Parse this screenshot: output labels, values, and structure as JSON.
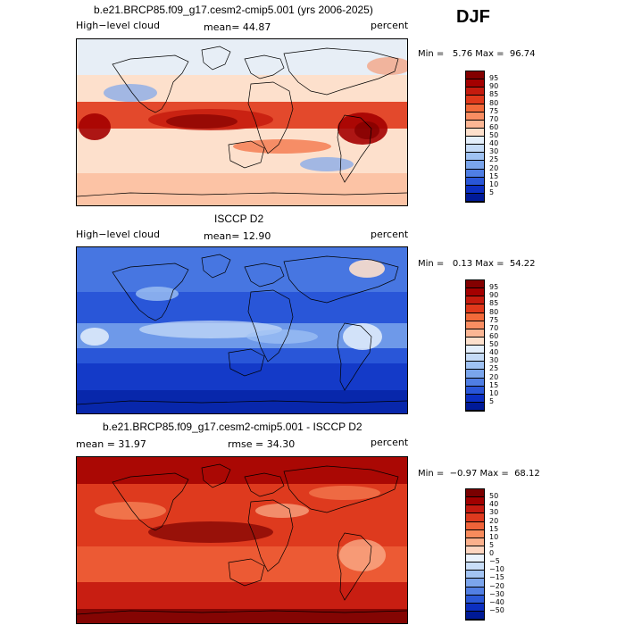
{
  "season": "DJF",
  "panels": [
    {
      "title": "b.e21.BRCP85.f09_g17.cesm2-cmip5.001 (yrs 2006-2025)",
      "left_label": "High−level cloud",
      "mean_text": "mean=  44.87",
      "units": "percent",
      "minmax": "Min =   5.76 Max =  96.74",
      "field": "model",
      "colorbar": {
        "labels": [
          "95",
          "90",
          "85",
          "80",
          "75",
          "70",
          "60",
          "50",
          "40",
          "30",
          "25",
          "20",
          "15",
          "10",
          "5"
        ],
        "colors": [
          "#830000",
          "#a40000",
          "#c51b0e",
          "#e0391b",
          "#f26a3a",
          "#f98e62",
          "#fbb694",
          "#fde0cc",
          "#e4effb",
          "#c5dbf7",
          "#9fc2f3",
          "#7aa5ec",
          "#4f7ee4",
          "#2956d8",
          "#0b2fc2",
          "#001a98"
        ]
      }
    },
    {
      "title": "ISCCP D2",
      "left_label": "High−level cloud",
      "mean_text": "mean=  12.90",
      "units": "percent",
      "minmax": "Min =   0.13 Max =  54.22",
      "field": "obs",
      "colorbar": {
        "labels": [
          "95",
          "90",
          "85",
          "80",
          "75",
          "70",
          "60",
          "50",
          "40",
          "30",
          "25",
          "20",
          "15",
          "10",
          "5"
        ],
        "colors": [
          "#830000",
          "#a40000",
          "#c51b0e",
          "#e0391b",
          "#f26a3a",
          "#f98e62",
          "#fbb694",
          "#fde0cc",
          "#e4effb",
          "#c5dbf7",
          "#9fc2f3",
          "#7aa5ec",
          "#4f7ee4",
          "#2956d8",
          "#0b2fc2",
          "#001a98"
        ]
      }
    },
    {
      "title": "b.e21.BRCP85.f09_g17.cesm2-cmip5.001 - ISCCP D2",
      "mean_text": "mean =   31.97",
      "rmse_text": "rmse =   34.30",
      "units": "percent",
      "minmax": "Min =  −0.97 Max =  68.12",
      "field": "diff",
      "colorbar": {
        "labels": [
          "50",
          "40",
          "30",
          "20",
          "15",
          "10",
          "5",
          "0",
          "−5",
          "−10",
          "−15",
          "−20",
          "−30",
          "−40",
          "−50"
        ],
        "colors": [
          "#7a0000",
          "#a10000",
          "#c41a10",
          "#de3a1e",
          "#ef6339",
          "#f88b5c",
          "#fbb08c",
          "#fdd5c0",
          "#eaf2fc",
          "#c9def8",
          "#a3c4f3",
          "#7ca5ec",
          "#527fe3",
          "#2b58d6",
          "#0c2fc0",
          "#001a96"
        ]
      }
    }
  ]
}
